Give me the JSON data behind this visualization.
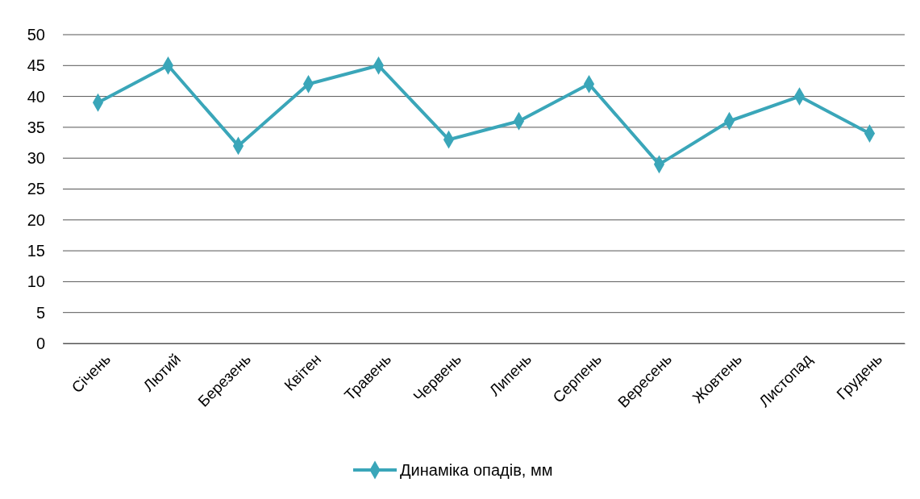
{
  "chart_data": {
    "type": "line",
    "categories": [
      "Січень",
      "Лютий",
      "Березень",
      "Квітен",
      "Травень",
      "Червень",
      "Липень",
      "Серпень",
      "Вересень",
      "Жовтень",
      "Листопад",
      "Грудень"
    ],
    "series": [
      {
        "name": "Динаміка опадів, мм",
        "color": "#3aa6b9",
        "values": [
          39,
          45,
          32,
          42,
          45,
          33,
          36,
          42,
          29,
          36,
          40,
          34
        ]
      }
    ],
    "ylim": [
      0,
      50
    ],
    "yticks": [
      0,
      5,
      10,
      15,
      20,
      25,
      30,
      35,
      40,
      45,
      50
    ],
    "grid": "y",
    "legend": "bottom",
    "marker": "diamond",
    "line_style": "solid"
  }
}
